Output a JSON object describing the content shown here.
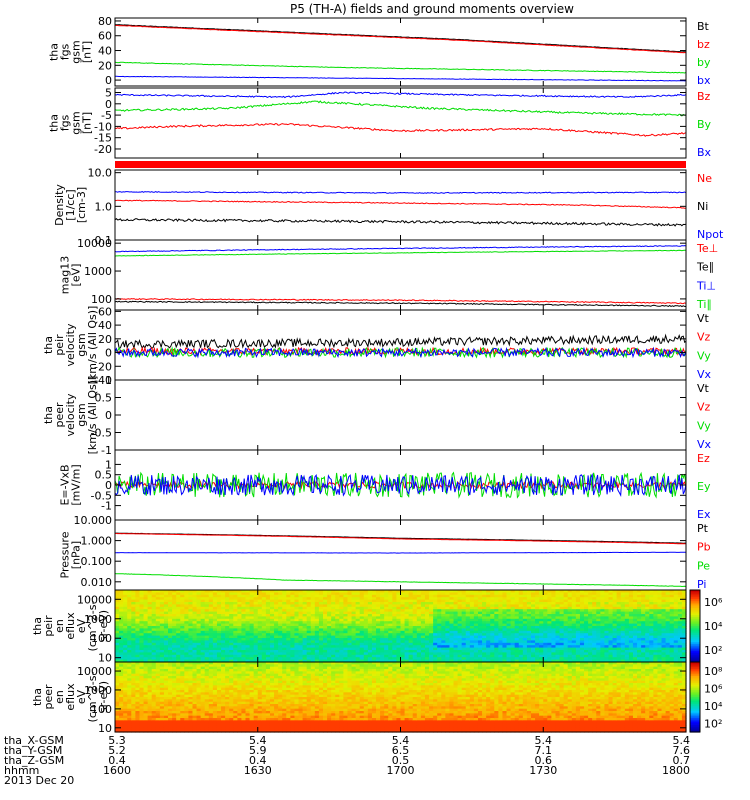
{
  "title": "P5 (TH-A) fields and ground moments overview",
  "colors": {
    "black": "#000000",
    "red": "#ff0000",
    "green": "#00dd00",
    "blue": "#0000ff",
    "magenta": "#ff00ff"
  },
  "chart_data": [
    {
      "type": "line",
      "id": "fgs-gsm-mag",
      "ylabel": [
        "tha",
        "fgs",
        "gsm",
        "[nT]"
      ],
      "yticks": [
        0,
        20,
        40,
        60,
        80
      ],
      "ylim": [
        -8,
        84
      ],
      "log": false,
      "series": [
        {
          "name": "Bt",
          "color": "#000000",
          "x": [
            0,
            0.6,
            1
          ],
          "y": [
            75,
            55,
            38
          ],
          "noise": 0.3
        },
        {
          "name": "bz",
          "color": "#ff0000",
          "x": [
            0,
            0.6,
            1
          ],
          "y": [
            74,
            54,
            37
          ],
          "noise": 0.3
        },
        {
          "name": "by",
          "color": "#00dd00",
          "x": [
            0,
            0.4,
            1
          ],
          "y": [
            24,
            17,
            10
          ],
          "noise": 0.4
        },
        {
          "name": "bx",
          "color": "#0000ff",
          "x": [
            0,
            0.5,
            1
          ],
          "y": [
            5,
            2,
            -1
          ],
          "noise": 0.3
        }
      ]
    },
    {
      "type": "line",
      "id": "fgs-gsm-ground",
      "ylabel": [
        "tha",
        "fgs",
        "gsm",
        "[nT]"
      ],
      "yticks": [
        -20,
        -15,
        -10,
        -5,
        0,
        5
      ],
      "ylim": [
        -24,
        7
      ],
      "log": false,
      "series": [
        {
          "name": "Bz",
          "color": "#ff0000",
          "x": [
            0,
            0.1,
            0.3,
            0.5,
            0.75,
            0.93,
            1
          ],
          "y": [
            -11,
            -10,
            -9,
            -12,
            -11,
            -14,
            -13
          ],
          "noise": 0.4
        },
        {
          "name": "By",
          "color": "#00dd00",
          "x": [
            0,
            0.2,
            0.35,
            0.55,
            0.8,
            1
          ],
          "y": [
            -3,
            -2,
            1,
            -2,
            -4,
            -5
          ],
          "noise": 0.4
        },
        {
          "name": "Bx",
          "color": "#0000ff",
          "x": [
            0,
            0.3,
            0.4,
            0.6,
            0.9,
            1
          ],
          "y": [
            4,
            3,
            5,
            4,
            3,
            4
          ],
          "noise": 0.3
        }
      ]
    },
    {
      "type": "line",
      "id": "density",
      "ylabel": [
        "Density",
        "[1/cc]",
        "[cm-3]"
      ],
      "ytick_labels": [
        "0.1",
        "1.0",
        "10.0"
      ],
      "yticks": [
        0.1,
        1,
        10
      ],
      "ylim": [
        0.1,
        12
      ],
      "log": true,
      "series": [
        {
          "name": "Ne",
          "color": "#ff0000",
          "x": [
            0,
            0.4,
            0.8,
            1
          ],
          "y": [
            1.5,
            1.3,
            1.1,
            0.9
          ],
          "noise": 0.03
        },
        {
          "name": "Ni",
          "color": "#000000",
          "x": [
            0,
            0.5,
            1
          ],
          "y": [
            0.4,
            0.35,
            0.28
          ],
          "noise": 0.08
        },
        {
          "name": "Npot",
          "color": "#0000ff",
          "x": [
            0,
            0.5,
            1
          ],
          "y": [
            2.7,
            2.5,
            2.6
          ],
          "noise": 0.03
        }
      ]
    },
    {
      "type": "line",
      "id": "temperature",
      "ylabel": [
        "mag13",
        "[eV]"
      ],
      "ytick_labels": [
        "100",
        "1000",
        "10000"
      ],
      "yticks": [
        100,
        1000,
        10000
      ],
      "ylim": [
        40,
        13000
      ],
      "log": true,
      "series": [
        {
          "name": "Te⊥",
          "color": "#ff0000",
          "x": [
            0,
            0.5,
            1
          ],
          "y": [
            100,
            90,
            70
          ],
          "noise": 0.04
        },
        {
          "name": "Te∥",
          "color": "#000000",
          "x": [
            0,
            0.5,
            1
          ],
          "y": [
            80,
            70,
            55
          ],
          "noise": 0.04
        },
        {
          "name": "Ti⊥",
          "color": "#0000ff",
          "x": [
            0,
            0.5,
            1
          ],
          "y": [
            5000,
            6500,
            8000
          ],
          "noise": 0.03
        },
        {
          "name": "Ti∥",
          "color": "#00dd00",
          "x": [
            0,
            0.5,
            1
          ],
          "y": [
            3500,
            4500,
            5500
          ],
          "noise": 0.02
        }
      ]
    },
    {
      "type": "line",
      "id": "peir-velocity",
      "ylabel": [
        "tha",
        "peir",
        "velocity",
        "gsm",
        "[km/s (All Qs)]"
      ],
      "yticks": [
        -40,
        -20,
        0,
        20,
        40,
        60
      ],
      "ylim": [
        -40,
        62
      ],
      "log": false,
      "series": [
        {
          "name": "Vt",
          "color": "#000000",
          "x": [
            0,
            0.5,
            1
          ],
          "y": [
            12,
            15,
            20
          ],
          "noise": 6
        },
        {
          "name": "Vz",
          "color": "#ff0000",
          "x": [
            0,
            1
          ],
          "y": [
            2,
            2
          ],
          "noise": 5
        },
        {
          "name": "Vy",
          "color": "#00dd00",
          "x": [
            0,
            1
          ],
          "y": [
            0,
            0
          ],
          "noise": 7
        },
        {
          "name": "Vx",
          "color": "#0000ff",
          "x": [
            0,
            1
          ],
          "y": [
            0,
            0
          ],
          "noise": 6
        }
      ]
    },
    {
      "type": "line",
      "id": "peer-velocity",
      "ylabel": [
        "tha",
        "peer",
        "velocity",
        "gsm",
        "[km/s (All Qs)]"
      ],
      "yticks": [
        -1.0,
        -0.5,
        0.0,
        0.5,
        1.0
      ],
      "ylim": [
        -1,
        1
      ],
      "log": false,
      "series": [
        {
          "name": "Vt",
          "color": "#000000",
          "x": [],
          "y": []
        },
        {
          "name": "Vz",
          "color": "#ff0000",
          "x": [],
          "y": []
        },
        {
          "name": "Vy",
          "color": "#00dd00",
          "x": [],
          "y": []
        },
        {
          "name": "Vx",
          "color": "#0000ff",
          "x": [],
          "y": []
        }
      ]
    },
    {
      "type": "line",
      "id": "efield",
      "ylabel": [
        "E=-VxB",
        "[mV/m]"
      ],
      "yticks": [
        -1,
        -0.5,
        0,
        0.5,
        1
      ],
      "ylim": [
        -1.7,
        1.7
      ],
      "log": false,
      "series": [
        {
          "name": "Ez",
          "color": "#ff0000",
          "x": [
            0,
            1
          ],
          "y": [
            0,
            0
          ],
          "noise": 0.15
        },
        {
          "name": "Ey",
          "color": "#00dd00",
          "x": [
            0,
            1
          ],
          "y": [
            0,
            0
          ],
          "noise": 0.6
        },
        {
          "name": "Ex",
          "color": "#0000ff",
          "x": [
            0,
            1
          ],
          "y": [
            0,
            0
          ],
          "noise": 0.5
        }
      ]
    },
    {
      "type": "line",
      "id": "pressure",
      "ylabel": [
        "Pressure",
        "[nPa]"
      ],
      "ytick_labels": [
        "0.010",
        "0.100",
        "1.000",
        "10.000"
      ],
      "yticks": [
        0.01,
        0.1,
        1,
        10
      ],
      "ylim": [
        0.004,
        10
      ],
      "log": true,
      "series": [
        {
          "name": "Pt",
          "color": "#000000",
          "x": [
            0,
            0.5,
            1
          ],
          "y": [
            2.3,
            1.3,
            0.75
          ],
          "noise": 0.01
        },
        {
          "name": "Pb",
          "color": "#ff0000",
          "x": [
            0,
            0.5,
            1
          ],
          "y": [
            2.2,
            1.2,
            0.7
          ],
          "noise": 0.01
        },
        {
          "name": "Pe",
          "color": "#00dd00",
          "x": [
            0,
            0.3,
            0.6,
            1
          ],
          "y": [
            0.025,
            0.012,
            0.009,
            0.006
          ],
          "noise": 0.02
        },
        {
          "name": "Pi",
          "color": "#0000ff",
          "x": [
            0,
            0.5,
            1
          ],
          "y": [
            0.26,
            0.25,
            0.27
          ],
          "noise": 0.01
        }
      ]
    },
    {
      "type": "heatmap",
      "id": "peir-spectrogram",
      "ylabel": [
        "tha",
        "peir",
        "en",
        "eflux",
        "eV",
        "(cm^2-s-",
        "sr-eV)"
      ],
      "ytick_labels": [
        "10",
        "100",
        "1000",
        "10000"
      ],
      "yticks": [
        10,
        100,
        1000,
        10000
      ],
      "ylim": [
        6,
        30000
      ],
      "log": true,
      "colorbar_labels": [
        "10²",
        "10⁴",
        "10⁶"
      ],
      "colorbar_values": [
        100,
        10000,
        1000000
      ]
    },
    {
      "type": "heatmap",
      "id": "peer-spectrogram",
      "ylabel": [
        "tha",
        "peer",
        "en",
        "eflux",
        "eV",
        "(cm^2-s-",
        "sr-eV)"
      ],
      "ytick_labels": [
        "10",
        "100",
        "1000",
        "10000"
      ],
      "yticks": [
        10,
        100,
        1000,
        10000
      ],
      "ylim": [
        6,
        30000
      ],
      "log": true,
      "colorbar_labels": [
        "10²",
        "10⁴",
        "10⁶",
        "10⁸"
      ],
      "colorbar_values": [
        100,
        10000,
        1000000,
        100000000
      ]
    }
  ],
  "footer": {
    "rows": [
      {
        "label": "tha_X-GSM",
        "values": [
          "5.3",
          "5.4",
          "5.4",
          "5.4",
          "5.4"
        ]
      },
      {
        "label": "tha_Y-GSM",
        "values": [
          "5.2",
          "5.9",
          "6.5",
          "7.1",
          "7.6"
        ]
      },
      {
        "label": "tha_Z-GSM",
        "values": [
          "0.4",
          "0.4",
          "0.5",
          "0.6",
          "0.7"
        ]
      },
      {
        "label": "hhmm",
        "values": [
          "1600",
          "1630",
          "1700",
          "1730",
          "1800"
        ]
      }
    ],
    "date": "2013 Dec 20"
  }
}
